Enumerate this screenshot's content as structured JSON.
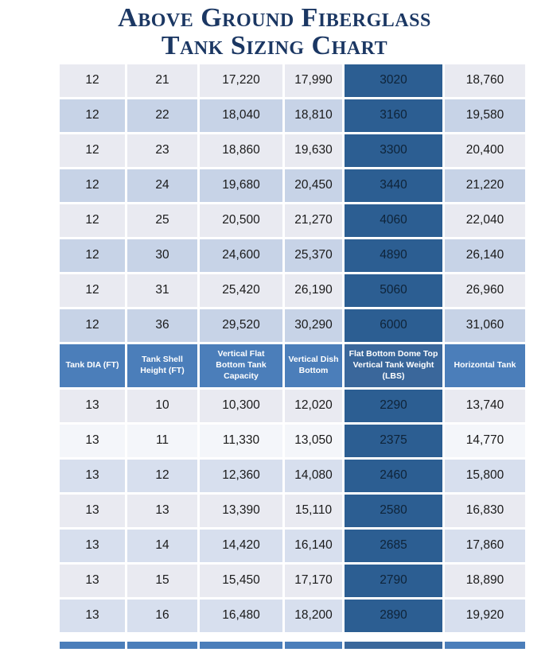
{
  "title_line1": "Above Ground Fiberglass",
  "title_line2": "Tank Sizing Chart",
  "chart_data": {
    "type": "table",
    "title": "Above Ground Fiberglass Tank Sizing Chart",
    "columns": [
      "Tank DIA (FT)",
      "Tank Shell Height (FT)",
      "Vertical Flat Bottom Tank Capacity",
      "Vertical Dish Bottom",
      "Flat Bottom Dome Top Vertical Tank Weight (LBS)",
      "Horizontal Tank"
    ],
    "header_between_sections": true,
    "sections": [
      {
        "name": "diameter-12-ft",
        "position": "above-header",
        "rows": [
          [
            "12",
            "21",
            "17,220",
            "17,990",
            "3020",
            "18,760"
          ],
          [
            "12",
            "22",
            "18,040",
            "18,810",
            "3160",
            "19,580"
          ],
          [
            "12",
            "23",
            "18,860",
            "19,630",
            "3300",
            "20,400"
          ],
          [
            "12",
            "24",
            "19,680",
            "20,450",
            "3440",
            "21,220"
          ],
          [
            "12",
            "25",
            "20,500",
            "21,270",
            "4060",
            "22,040"
          ],
          [
            "12",
            "30",
            "24,600",
            "25,370",
            "4890",
            "26,140"
          ],
          [
            "12",
            "31",
            "25,420",
            "26,190",
            "5060",
            "26,960"
          ],
          [
            "12",
            "36",
            "29,520",
            "30,290",
            "6000",
            "31,060"
          ]
        ]
      },
      {
        "name": "diameter-13-ft",
        "position": "below-header",
        "rows": [
          [
            "13",
            "10",
            "10,300",
            "12,020",
            "2290",
            "13,740"
          ],
          [
            "13",
            "11",
            "11,330",
            "13,050",
            "2375",
            "14,770"
          ],
          [
            "13",
            "12",
            "12,360",
            "14,080",
            "2460",
            "15,800"
          ],
          [
            "13",
            "13",
            "13,390",
            "15,110",
            "2580",
            "16,830"
          ],
          [
            "13",
            "14",
            "14,420",
            "16,140",
            "2685",
            "17,860"
          ],
          [
            "13",
            "15",
            "15,450",
            "17,170",
            "2790",
            "18,890"
          ],
          [
            "13",
            "16",
            "16,480",
            "18,200",
            "2890",
            "19,920"
          ]
        ]
      }
    ]
  },
  "colors": {
    "title": "#1B3763",
    "header_bg": "#4B7EBA",
    "header_dark_bg": "#3A679B",
    "row_light": "#E9EAF1",
    "row_shade_top": "#C7D3E7",
    "row_shade_bottom": "#D7DFEE",
    "row_xlight": "#F4F6FA",
    "dark_col_bg": "#2C5E92",
    "dark_col_text": "#0E2338",
    "text": "#1A1A1A"
  }
}
